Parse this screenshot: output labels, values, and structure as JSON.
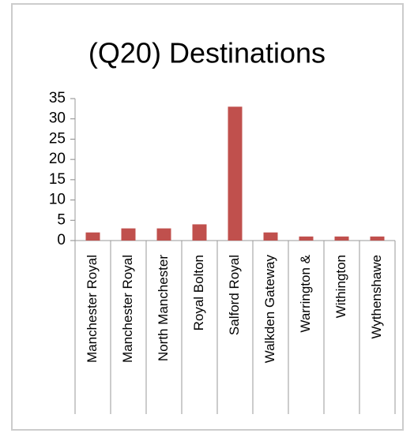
{
  "chart_data": {
    "type": "bar",
    "title": "(Q20) Destinations",
    "categories": [
      "Manchester Royal",
      "Manchester Royal",
      "North Manchester",
      "Royal Bolton",
      "Salford Royal",
      "Walkden Gateway",
      "Warrington &",
      "Withington",
      "Wythenshawe"
    ],
    "values": [
      2,
      3,
      3,
      4,
      33,
      2,
      1,
      1,
      1
    ],
    "color": "#c0504d",
    "ylim": [
      0,
      35
    ],
    "yticks": [
      0,
      5,
      10,
      15,
      20,
      25,
      30,
      35
    ],
    "grid": false
  }
}
